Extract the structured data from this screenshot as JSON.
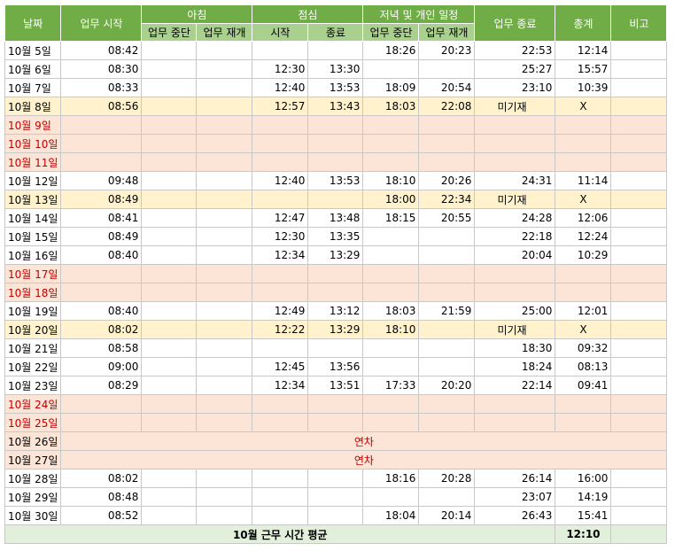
{
  "header": {
    "date": "날짜",
    "start": "업무 시작",
    "morning": "아침",
    "morning_pause": "업무 중단",
    "morning_resume": "업무 재개",
    "lunch": "점심",
    "lunch_start": "시작",
    "lunch_end": "종료",
    "evening": "저녁 및 개인 일정",
    "evening_pause": "업무 중단",
    "evening_resume": "업무 재개",
    "end": "업무 종료",
    "total": "총계",
    "note": "비고"
  },
  "rows": [
    {
      "date": "10월 5일",
      "start": "08:42",
      "mp": "",
      "mr": "",
      "ls": "",
      "le": "",
      "ep": "18:26",
      "er": "20:23",
      "end": "22:53",
      "total": "12:14",
      "note": "",
      "style": "normal"
    },
    {
      "date": "10월 6일",
      "start": "08:30",
      "mp": "",
      "mr": "",
      "ls": "12:30",
      "le": "13:30",
      "ep": "",
      "er": "",
      "end": "25:27",
      "total": "15:57",
      "note": "",
      "style": "normal"
    },
    {
      "date": "10월 7일",
      "start": "08:33",
      "mp": "",
      "mr": "",
      "ls": "12:40",
      "le": "13:53",
      "ep": "18:09",
      "er": "20:54",
      "end": "23:10",
      "total": "10:39",
      "note": "",
      "style": "normal"
    },
    {
      "date": "10월 8일",
      "start": "08:56",
      "mp": "",
      "mr": "",
      "ls": "12:57",
      "le": "13:43",
      "ep": "18:03",
      "er": "22:08",
      "end": "미기재",
      "total": "X",
      "note": "",
      "style": "yellow"
    },
    {
      "date": "10월 9일",
      "start": "",
      "mp": "",
      "mr": "",
      "ls": "",
      "le": "",
      "ep": "",
      "er": "",
      "end": "",
      "total": "",
      "note": "",
      "style": "pink"
    },
    {
      "date": "10월 10일",
      "start": "",
      "mp": "",
      "mr": "",
      "ls": "",
      "le": "",
      "ep": "",
      "er": "",
      "end": "",
      "total": "",
      "note": "",
      "style": "pink"
    },
    {
      "date": "10월 11일",
      "start": "",
      "mp": "",
      "mr": "",
      "ls": "",
      "le": "",
      "ep": "",
      "er": "",
      "end": "",
      "total": "",
      "note": "",
      "style": "pink"
    },
    {
      "date": "10월 12일",
      "start": "09:48",
      "mp": "",
      "mr": "",
      "ls": "12:40",
      "le": "13:53",
      "ep": "18:10",
      "er": "20:26",
      "end": "24:31",
      "total": "11:14",
      "note": "",
      "style": "normal"
    },
    {
      "date": "10월 13일",
      "start": "08:49",
      "mp": "",
      "mr": "",
      "ls": "",
      "le": "",
      "ep": "18:00",
      "er": "22:34",
      "end": "미기재",
      "total": "X",
      "note": "",
      "style": "yellow"
    },
    {
      "date": "10월 14일",
      "start": "08:41",
      "mp": "",
      "mr": "",
      "ls": "12:47",
      "le": "13:48",
      "ep": "18:15",
      "er": "20:55",
      "end": "24:28",
      "total": "12:06",
      "note": "",
      "style": "normal"
    },
    {
      "date": "10월 15일",
      "start": "08:49",
      "mp": "",
      "mr": "",
      "ls": "12:30",
      "le": "13:35",
      "ep": "",
      "er": "",
      "end": "22:18",
      "total": "12:24",
      "note": "",
      "style": "normal"
    },
    {
      "date": "10월 16일",
      "start": "08:40",
      "mp": "",
      "mr": "",
      "ls": "12:34",
      "le": "13:29",
      "ep": "",
      "er": "",
      "end": "20:04",
      "total": "10:29",
      "note": "",
      "style": "normal"
    },
    {
      "date": "10월 17일",
      "start": "",
      "mp": "",
      "mr": "",
      "ls": "",
      "le": "",
      "ep": "",
      "er": "",
      "end": "",
      "total": "",
      "note": "",
      "style": "pink"
    },
    {
      "date": "10월 18일",
      "start": "",
      "mp": "",
      "mr": "",
      "ls": "",
      "le": "",
      "ep": "",
      "er": "",
      "end": "",
      "total": "",
      "note": "",
      "style": "pink"
    },
    {
      "date": "10월 19일",
      "start": "08:40",
      "mp": "",
      "mr": "",
      "ls": "12:49",
      "le": "13:12",
      "ep": "18:03",
      "er": "21:59",
      "end": "25:00",
      "total": "12:01",
      "note": "",
      "style": "normal"
    },
    {
      "date": "10월 20일",
      "start": "08:02",
      "mp": "",
      "mr": "",
      "ls": "12:22",
      "le": "13:29",
      "ep": "18:10",
      "er": "",
      "end": "미기재",
      "total": "X",
      "note": "",
      "style": "yellow"
    },
    {
      "date": "10월 21일",
      "start": "08:58",
      "mp": "",
      "mr": "",
      "ls": "",
      "le": "",
      "ep": "",
      "er": "",
      "end": "18:30",
      "total": "09:32",
      "note": "",
      "style": "normal"
    },
    {
      "date": "10월 22일",
      "start": "09:00",
      "mp": "",
      "mr": "",
      "ls": "12:45",
      "le": "13:56",
      "ep": "",
      "er": "",
      "end": "18:24",
      "total": "08:13",
      "note": "",
      "style": "normal"
    },
    {
      "date": "10월 23일",
      "start": "08:29",
      "mp": "",
      "mr": "",
      "ls": "12:34",
      "le": "13:51",
      "ep": "17:33",
      "er": "20:20",
      "end": "22:14",
      "total": "09:41",
      "note": "",
      "style": "normal"
    },
    {
      "date": "10월 24일",
      "start": "",
      "mp": "",
      "mr": "",
      "ls": "",
      "le": "",
      "ep": "",
      "er": "",
      "end": "",
      "total": "",
      "note": "",
      "style": "pink"
    },
    {
      "date": "10월 25일",
      "start": "",
      "mp": "",
      "mr": "",
      "ls": "",
      "le": "",
      "ep": "",
      "er": "",
      "end": "",
      "total": "",
      "note": "",
      "style": "pink"
    },
    {
      "date": "10월 26일",
      "merged": "연차",
      "style": "leave"
    },
    {
      "date": "10월 27일",
      "merged": "연차",
      "style": "leave"
    },
    {
      "date": "10월 28일",
      "start": "08:02",
      "mp": "",
      "mr": "",
      "ls": "",
      "le": "",
      "ep": "18:16",
      "er": "20:28",
      "end": "26:14",
      "total": "16:00",
      "note": "",
      "style": "normal"
    },
    {
      "date": "10월 29일",
      "start": "08:48",
      "mp": "",
      "mr": "",
      "ls": "",
      "le": "",
      "ep": "",
      "er": "",
      "end": "23:07",
      "total": "14:19",
      "note": "",
      "style": "normal"
    },
    {
      "date": "10월 30일",
      "start": "08:52",
      "mp": "",
      "mr": "",
      "ls": "",
      "le": "",
      "ep": "18:04",
      "er": "20:14",
      "end": "26:43",
      "total": "15:41",
      "note": "",
      "style": "normal"
    }
  ],
  "footer": {
    "label": "10월 근무 시간 평균",
    "average": "12:10"
  }
}
